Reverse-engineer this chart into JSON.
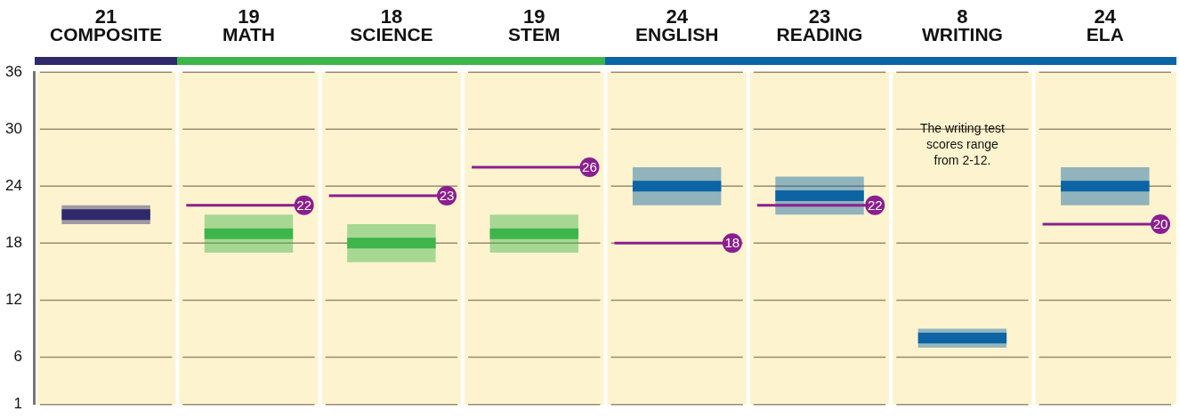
{
  "chart_data": {
    "type": "box",
    "categories": [
      "COMPOSITE",
      "MATH",
      "SCIENCE",
      "STEM",
      "ENGLISH",
      "READING",
      "WRITING",
      "ELA"
    ],
    "series": [
      {
        "type": "box",
        "colors": [
          "#2e2a6b",
          "#3db54a",
          "#3db54a",
          "#3db54a",
          "#0d64a5",
          "#0d64a5",
          "#0d64a5",
          "#0d64a5"
        ],
        "value_labels": [
          "21",
          "19",
          "18",
          "19",
          "24",
          "23",
          "8",
          "24"
        ],
        "boxes": [
          {
            "low": 20,
            "q1": 20,
            "median": 21,
            "q3": 22,
            "high": 22
          },
          {
            "low": 17,
            "q1": 17,
            "median": 19,
            "q3": 21,
            "high": 21
          },
          {
            "low": 16,
            "q1": 16,
            "median": 18,
            "q3": 20,
            "high": 20
          },
          {
            "low": 17,
            "q1": 17,
            "median": 19,
            "q3": 21,
            "high": 21
          },
          {
            "low": 22,
            "q1": 22,
            "median": 24,
            "q3": 26,
            "high": 26
          },
          {
            "low": 21,
            "q1": 21,
            "median": 23,
            "q3": 25,
            "high": 25
          },
          {
            "low": 7,
            "q1": 7,
            "median": 8,
            "q3": 9,
            "high": 9
          },
          {
            "low": 22,
            "q1": 22,
            "median": 24,
            "q3": 26,
            "high": 26
          }
        ]
      },
      {
        "type": "scatter",
        "color": "#8b1f8e",
        "marker": "circle",
        "x": [
          "MATH",
          "SCIENCE",
          "STEM",
          "ENGLISH",
          "READING",
          "ELA"
        ],
        "values": [
          22,
          23,
          26,
          18,
          22,
          20
        ]
      }
    ],
    "ylim": [
      1,
      36
    ],
    "yticks": [
      1,
      6,
      12,
      18,
      24,
      30,
      36
    ],
    "grid": "y",
    "legend": false,
    "data_labels": true,
    "annotations": [
      "The writing test scores range from 2-12."
    ]
  }
}
